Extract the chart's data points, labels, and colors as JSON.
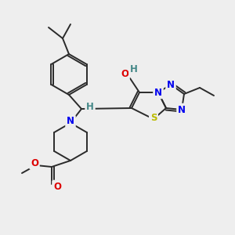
{
  "bg_color": "#eeeeee",
  "bond_color": "#2a2a2a",
  "bond_width": 1.4,
  "atom_colors": {
    "N": "#0000ee",
    "O": "#dd0000",
    "S": "#bbbb00",
    "H": "#448888",
    "C": "#2a2a2a"
  },
  "font_size": 8.5,
  "figsize": [
    3.0,
    3.0
  ],
  "dpi": 100
}
